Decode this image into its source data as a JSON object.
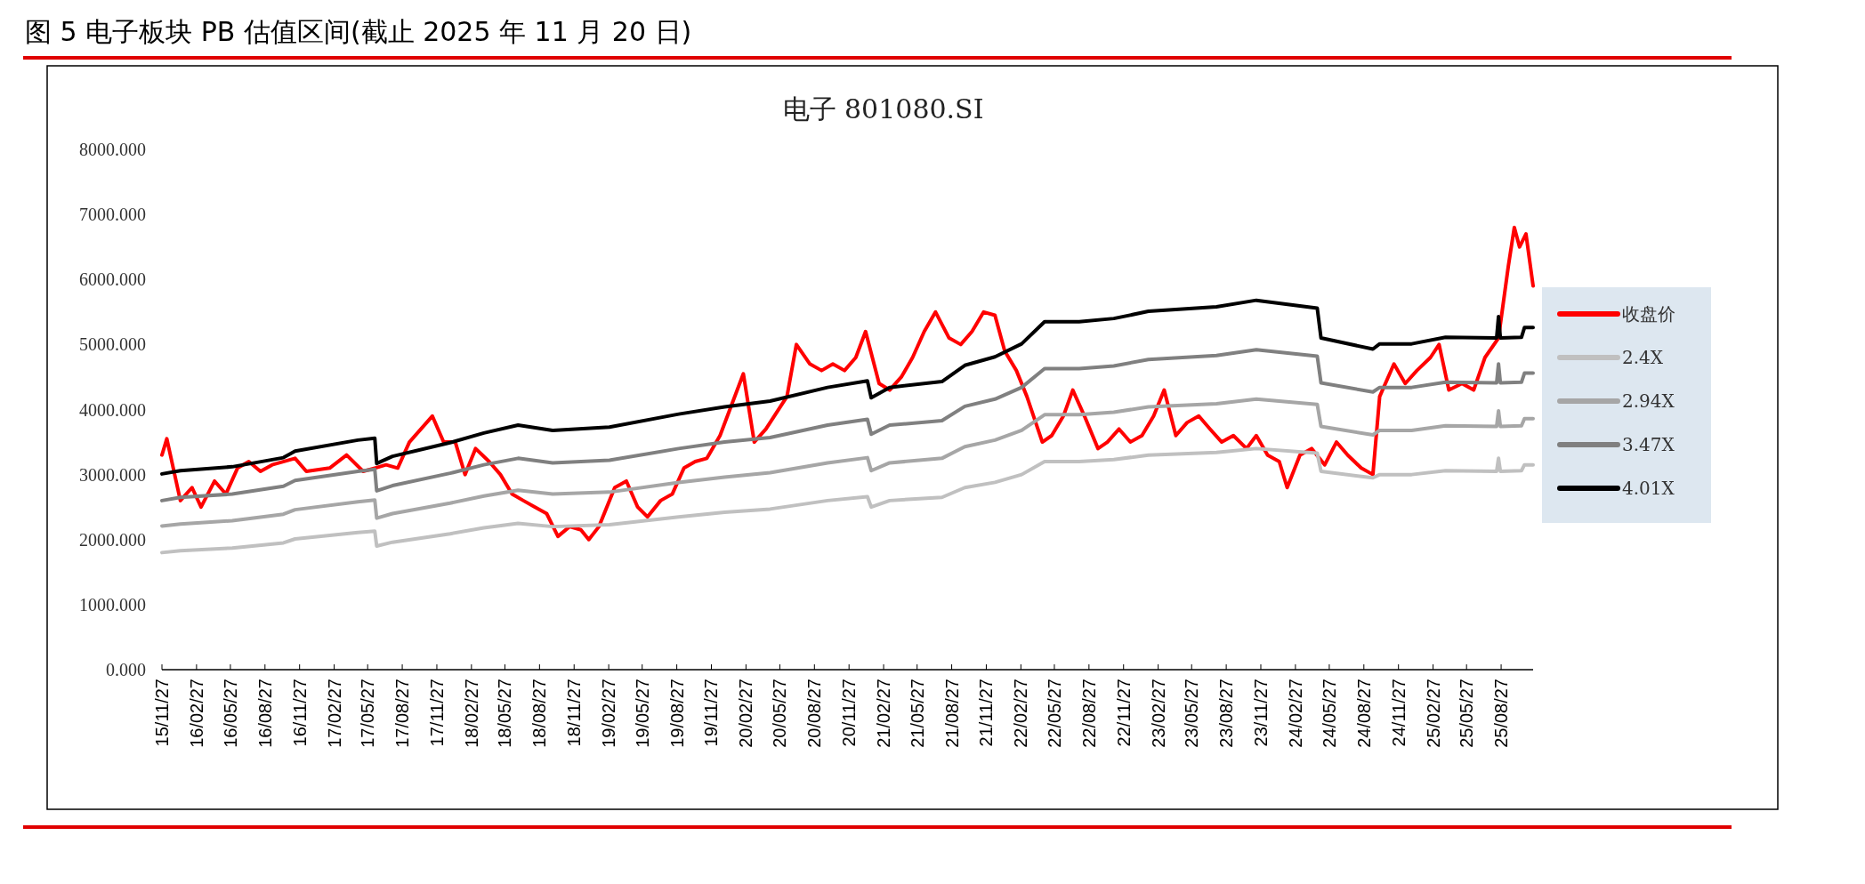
{
  "chart_data": {
    "type": "line",
    "title": "图 5 电子板块 PB 估值区间(截止 2025 年 11 月 20 日)",
    "subtitle": "电子 801080.SI",
    "xlim": [
      "2015-11-27",
      "2025-11-20"
    ],
    "xticks": [
      {
        "value": "2015-11-27",
        "label": "15/11/27"
      },
      {
        "value": "2016-02-27",
        "label": "16/02/27"
      },
      {
        "value": "2016-05-27",
        "label": "16/05/27"
      },
      {
        "value": "2016-08-27",
        "label": "16/08/27"
      },
      {
        "value": "2016-11-27",
        "label": "16/11/27"
      },
      {
        "value": "2017-02-27",
        "label": "17/02/27"
      },
      {
        "value": "2017-05-27",
        "label": "17/05/27"
      },
      {
        "value": "2017-08-27",
        "label": "17/08/27"
      },
      {
        "value": "2017-11-27",
        "label": "17/11/27"
      },
      {
        "value": "2018-02-27",
        "label": "18/02/27"
      },
      {
        "value": "2018-05-27",
        "label": "18/05/27"
      },
      {
        "value": "2018-08-27",
        "label": "18/08/27"
      },
      {
        "value": "2018-11-27",
        "label": "18/11/27"
      },
      {
        "value": "2019-02-27",
        "label": "19/02/27"
      },
      {
        "value": "2019-05-27",
        "label": "19/05/27"
      },
      {
        "value": "2019-08-27",
        "label": "19/08/27"
      },
      {
        "value": "2019-11-27",
        "label": "19/11/27"
      },
      {
        "value": "2020-02-27",
        "label": "20/02/27"
      },
      {
        "value": "2020-05-27",
        "label": "20/05/27"
      },
      {
        "value": "2020-08-27",
        "label": "20/08/27"
      },
      {
        "value": "2020-11-27",
        "label": "20/11/27"
      },
      {
        "value": "2021-02-27",
        "label": "21/02/27"
      },
      {
        "value": "2021-05-27",
        "label": "21/05/27"
      },
      {
        "value": "2021-08-27",
        "label": "21/08/27"
      },
      {
        "value": "2021-11-27",
        "label": "21/11/27"
      },
      {
        "value": "2022-02-27",
        "label": "22/02/27"
      },
      {
        "value": "2022-05-27",
        "label": "22/05/27"
      },
      {
        "value": "2022-08-27",
        "label": "22/08/27"
      },
      {
        "value": "2022-11-27",
        "label": "22/11/27"
      },
      {
        "value": "2023-02-27",
        "label": "23/02/27"
      },
      {
        "value": "2023-05-27",
        "label": "23/05/27"
      },
      {
        "value": "2023-08-27",
        "label": "23/08/27"
      },
      {
        "value": "2023-11-27",
        "label": "23/11/27"
      },
      {
        "value": "2024-02-27",
        "label": "24/02/27"
      },
      {
        "value": "2024-05-27",
        "label": "24/05/27"
      },
      {
        "value": "2024-08-27",
        "label": "24/08/27"
      },
      {
        "value": "2024-11-27",
        "label": "24/11/27"
      },
      {
        "value": "2025-02-27",
        "label": "25/02/27"
      },
      {
        "value": "2025-05-27",
        "label": "25/05/27"
      },
      {
        "value": "2025-08-27",
        "label": "25/08/27"
      }
    ],
    "ylim": [
      0,
      8000
    ],
    "yticks": [
      {
        "value": 0,
        "label": "0.000"
      },
      {
        "value": 1000,
        "label": "1000.000"
      },
      {
        "value": 2000,
        "label": "2000.000"
      },
      {
        "value": 3000,
        "label": "3000.000"
      },
      {
        "value": 4000,
        "label": "4000.000"
      },
      {
        "value": 5000,
        "label": "5000.000"
      },
      {
        "value": 6000,
        "label": "6000.000"
      },
      {
        "value": 7000,
        "label": "7000.000"
      },
      {
        "value": 8000,
        "label": "8000.000"
      }
    ],
    "grid": false,
    "legend": "right",
    "marker": "none",
    "line_style": "solid",
    "series": [
      {
        "name": "收盘价",
        "color": "#ff0000",
        "x": [
          "2015-11-27",
          "2015-12-10",
          "2016-01-15",
          "2016-02-15",
          "2016-03-10",
          "2016-04-15",
          "2016-05-15",
          "2016-06-15",
          "2016-07-15",
          "2016-08-15",
          "2016-09-15",
          "2016-11-15",
          "2016-12-15",
          "2017-02-15",
          "2017-04-01",
          "2017-05-15",
          "2017-06-15",
          "2017-07-15",
          "2017-08-15",
          "2017-09-15",
          "2017-11-15",
          "2017-12-15",
          "2018-01-15",
          "2018-02-10",
          "2018-03-10",
          "2018-04-15",
          "2018-05-15",
          "2018-06-15",
          "2018-07-15",
          "2018-08-15",
          "2018-09-15",
          "2018-10-15",
          "2018-11-15",
          "2018-12-15",
          "2019-01-05",
          "2019-02-01",
          "2019-03-15",
          "2019-04-15",
          "2019-05-15",
          "2019-06-10",
          "2019-07-15",
          "2019-08-15",
          "2019-09-15",
          "2019-10-15",
          "2019-11-15",
          "2019-12-20",
          "2020-02-20",
          "2020-03-20",
          "2020-04-20",
          "2020-06-15",
          "2020-07-10",
          "2020-08-15",
          "2020-09-15",
          "2020-10-15",
          "2020-11-15",
          "2020-12-15",
          "2021-01-10",
          "2021-02-15",
          "2021-03-15",
          "2021-04-15",
          "2021-05-15",
          "2021-06-15",
          "2021-07-15",
          "2021-08-20",
          "2021-09-20",
          "2021-10-20",
          "2021-11-20",
          "2021-12-20",
          "2022-01-15",
          "2022-02-15",
          "2022-03-15",
          "2022-04-25",
          "2022-05-20",
          "2022-06-20",
          "2022-07-15",
          "2022-08-15",
          "2022-09-20",
          "2022-10-15",
          "2022-11-15",
          "2022-12-15",
          "2023-01-15",
          "2023-02-15",
          "2023-03-15",
          "2023-04-15",
          "2023-05-15",
          "2023-06-15",
          "2023-07-15",
          "2023-08-15",
          "2023-09-15",
          "2023-10-20",
          "2023-11-15",
          "2023-12-15",
          "2024-01-15",
          "2024-02-05",
          "2024-03-10",
          "2024-04-10",
          "2024-05-15",
          "2024-06-15",
          "2024-07-15",
          "2024-08-20",
          "2024-09-20",
          "2024-10-08",
          "2024-11-15",
          "2024-12-15",
          "2025-01-15",
          "2025-02-20",
          "2025-03-15",
          "2025-04-10",
          "2025-05-15",
          "2025-06-15",
          "2025-07-15",
          "2025-08-20",
          "2025-09-15",
          "2025-10-01",
          "2025-10-15",
          "2025-11-01",
          "2025-11-20"
        ],
        "values": [
          3300,
          3550,
          2600,
          2800,
          2500,
          2900,
          2700,
          3100,
          3200,
          3050,
          3150,
          3250,
          3050,
          3100,
          3300,
          3050,
          3100,
          3150,
          3100,
          3500,
          3900,
          3500,
          3500,
          3000,
          3400,
          3200,
          3000,
          2700,
          2600,
          2500,
          2400,
          2050,
          2200,
          2150,
          2000,
          2200,
          2800,
          2900,
          2500,
          2350,
          2600,
          2700,
          3100,
          3200,
          3250,
          3600,
          4550,
          3500,
          3700,
          4200,
          5000,
          4700,
          4600,
          4700,
          4600,
          4800,
          5200,
          4400,
          4300,
          4500,
          4800,
          5200,
          5500,
          5100,
          5000,
          5200,
          5500,
          5450,
          4900,
          4600,
          4200,
          3500,
          3600,
          3900,
          4300,
          3900,
          3400,
          3500,
          3700,
          3500,
          3600,
          3900,
          4300,
          3600,
          3800,
          3900,
          3700,
          3500,
          3600,
          3400,
          3600,
          3300,
          3200,
          2800,
          3300,
          3400,
          3150,
          3500,
          3300,
          3100,
          3000,
          4200,
          4700,
          4400,
          4600,
          4800,
          5000,
          4300,
          4400,
          4300,
          4800,
          5100,
          6200,
          6800,
          6500,
          6700,
          5900
        ]
      },
      {
        "name": "2.4X",
        "color": "#c0c0c0",
        "x": [
          "2015-11-27",
          "2016-01-15",
          "2016-06-01",
          "2016-10-15",
          "2016-11-15",
          "2017-05-01",
          "2017-06-15",
          "2017-06-20",
          "2017-08-01",
          "2018-01-01",
          "2018-04-01",
          "2018-07-01",
          "2018-10-01",
          "2019-03-01",
          "2019-09-01",
          "2020-01-01",
          "2020-05-01",
          "2020-10-01",
          "2021-01-15",
          "2021-01-25",
          "2021-03-15",
          "2021-08-01",
          "2021-10-01",
          "2021-12-20",
          "2022-03-01",
          "2022-05-01",
          "2022-08-01",
          "2022-11-01",
          "2023-02-01",
          "2023-08-01",
          "2023-11-15",
          "2024-04-25",
          "2024-05-05",
          "2024-09-20",
          "2024-10-08",
          "2025-01-01",
          "2025-04-01",
          "2025-08-15",
          "2025-08-20",
          "2025-08-25",
          "2025-10-20",
          "2025-10-28",
          "2025-11-20"
        ],
        "values": [
          1800,
          1830,
          1870,
          1950,
          2010,
          2110,
          2130,
          1900,
          1960,
          2090,
          2180,
          2250,
          2200,
          2230,
          2350,
          2420,
          2470,
          2600,
          2660,
          2500,
          2600,
          2650,
          2800,
          2880,
          3000,
          3200,
          3200,
          3230,
          3300,
          3340,
          3400,
          3330,
          3050,
          2950,
          3000,
          3000,
          3060,
          3050,
          3250,
          3050,
          3060,
          3150,
          3150
        ]
      },
      {
        "name": "2.94X",
        "color": "#a6a6a6",
        "x": [
          "2015-11-27",
          "2016-01-15",
          "2016-06-01",
          "2016-10-15",
          "2016-11-15",
          "2017-05-01",
          "2017-06-15",
          "2017-06-20",
          "2017-08-01",
          "2018-01-01",
          "2018-04-01",
          "2018-07-01",
          "2018-10-01",
          "2019-03-01",
          "2019-09-01",
          "2020-01-01",
          "2020-05-01",
          "2020-10-01",
          "2021-01-15",
          "2021-01-25",
          "2021-03-15",
          "2021-08-01",
          "2021-10-01",
          "2021-12-20",
          "2022-03-01",
          "2022-05-01",
          "2022-08-01",
          "2022-11-01",
          "2023-02-01",
          "2023-08-01",
          "2023-11-15",
          "2024-04-25",
          "2024-05-05",
          "2024-09-20",
          "2024-10-08",
          "2025-01-01",
          "2025-04-01",
          "2025-08-15",
          "2025-08-20",
          "2025-08-25",
          "2025-10-20",
          "2025-10-28",
          "2025-11-20"
        ],
        "values": [
          2210,
          2240,
          2290,
          2390,
          2460,
          2580,
          2610,
          2330,
          2400,
          2560,
          2670,
          2760,
          2700,
          2730,
          2880,
          2960,
          3030,
          3180,
          3260,
          3060,
          3180,
          3250,
          3430,
          3530,
          3680,
          3920,
          3920,
          3960,
          4040,
          4090,
          4160,
          4080,
          3740,
          3610,
          3680,
          3680,
          3750,
          3740,
          3980,
          3740,
          3750,
          3860,
          3860
        ]
      },
      {
        "name": "3.47X",
        "color": "#808080",
        "x": [
          "2015-11-27",
          "2016-01-15",
          "2016-06-01",
          "2016-10-15",
          "2016-11-15",
          "2017-05-01",
          "2017-06-15",
          "2017-06-20",
          "2017-08-01",
          "2018-01-01",
          "2018-04-01",
          "2018-07-01",
          "2018-10-01",
          "2019-03-01",
          "2019-09-01",
          "2020-01-01",
          "2020-05-01",
          "2020-10-01",
          "2021-01-15",
          "2021-01-25",
          "2021-03-15",
          "2021-08-01",
          "2021-10-01",
          "2021-12-20",
          "2022-03-01",
          "2022-05-01",
          "2022-08-01",
          "2022-11-01",
          "2023-02-01",
          "2023-08-01",
          "2023-11-15",
          "2024-04-25",
          "2024-05-05",
          "2024-09-20",
          "2024-10-08",
          "2025-01-01",
          "2025-04-01",
          "2025-08-15",
          "2025-08-20",
          "2025-08-25",
          "2025-10-20",
          "2025-10-28",
          "2025-11-20"
        ],
        "values": [
          2600,
          2650,
          2700,
          2820,
          2910,
          3050,
          3080,
          2750,
          2830,
          3020,
          3150,
          3250,
          3180,
          3220,
          3400,
          3500,
          3570,
          3760,
          3850,
          3620,
          3760,
          3830,
          4050,
          4160,
          4340,
          4630,
          4630,
          4670,
          4770,
          4830,
          4920,
          4820,
          4410,
          4270,
          4340,
          4340,
          4420,
          4410,
          4700,
          4410,
          4420,
          4560,
          4560
        ]
      },
      {
        "name": "4.01X",
        "color": "#000000",
        "x": [
          "2015-11-27",
          "2016-01-15",
          "2016-06-01",
          "2016-10-15",
          "2016-11-15",
          "2017-05-01",
          "2017-06-15",
          "2017-06-20",
          "2017-08-01",
          "2018-01-01",
          "2018-04-01",
          "2018-07-01",
          "2018-10-01",
          "2019-03-01",
          "2019-09-01",
          "2020-01-01",
          "2020-05-01",
          "2020-10-01",
          "2021-01-15",
          "2021-01-25",
          "2021-03-15",
          "2021-08-01",
          "2021-10-01",
          "2021-12-20",
          "2022-03-01",
          "2022-05-01",
          "2022-08-01",
          "2022-11-01",
          "2023-02-01",
          "2023-08-01",
          "2023-11-15",
          "2024-04-25",
          "2024-05-05",
          "2024-09-20",
          "2024-10-08",
          "2025-01-01",
          "2025-04-01",
          "2025-08-15",
          "2025-08-20",
          "2025-08-25",
          "2025-10-20",
          "2025-10-28",
          "2025-11-20"
        ],
        "values": [
          3010,
          3060,
          3120,
          3260,
          3360,
          3530,
          3560,
          3170,
          3280,
          3490,
          3640,
          3760,
          3680,
          3730,
          3930,
          4040,
          4130,
          4340,
          4440,
          4180,
          4340,
          4430,
          4680,
          4810,
          5010,
          5350,
          5350,
          5400,
          5510,
          5580,
          5680,
          5560,
          5100,
          4930,
          5010,
          5010,
          5110,
          5100,
          5430,
          5100,
          5110,
          5260,
          5260
        ]
      }
    ]
  }
}
